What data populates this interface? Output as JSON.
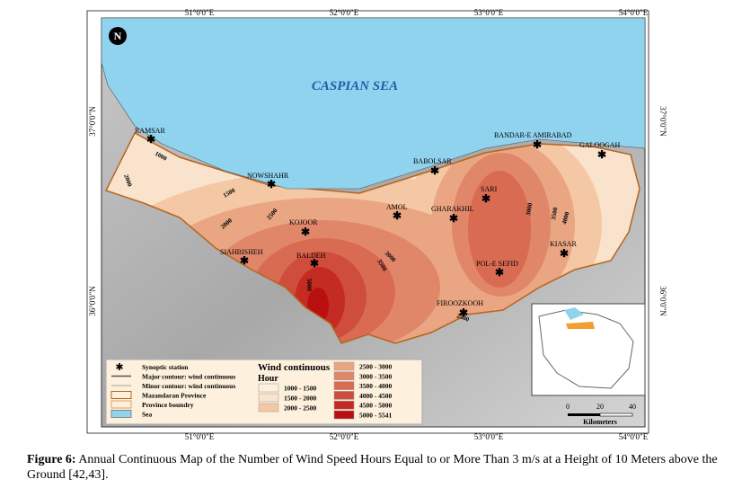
{
  "map": {
    "sea_label": "CASPIAN SEA",
    "longitudes": [
      "51°0'0\"E",
      "52°0'0\"E",
      "53°0'0\"E",
      "54°0'0\"E"
    ],
    "latitudes": [
      "37°0'0\"N",
      "36°0'0\"N"
    ],
    "stations": [
      "RAMSAR",
      "NOWSHAHR",
      "KOJOOR",
      "BALDEH",
      "SIAHBISHEH",
      "AMOL",
      "BABOLSAR",
      "GHARAKHIL",
      "SARI",
      "BANDAR-E AMIRABAD",
      "GALOOGAH",
      "KIASAR",
      "POL-E SEFID",
      "FIROOZKOOH"
    ],
    "contour_labels": [
      "1000",
      "2000",
      "1500",
      "2000",
      "2500",
      "3000",
      "3500",
      "5000",
      "2500",
      "3000",
      "3500",
      "4000"
    ]
  },
  "legend": {
    "items": [
      "Synoptic station",
      "Major contour: wind continuous",
      "Minor contour: wind continuous",
      "Mazandaran Province",
      "Province boundry",
      "Sea"
    ],
    "wind_title": "Wind continuous",
    "wind_unit": "Hour",
    "classes": [
      "1000 - 1500",
      "1500 - 2000",
      "2000 - 2500",
      "2500 - 3000",
      "3000 - 3500",
      "3500 - 4000",
      "4000 - 4500",
      "4500 - 5000",
      "5000 - 5541"
    ]
  },
  "scale": {
    "ticks": [
      "0",
      "20",
      "40"
    ],
    "unit": "Kilometers"
  },
  "caption": {
    "label": "Figure 6:",
    "text": "Annual Continuous Map of the Number of Wind Speed Hours Equal to or More Than 3 m/s at a Height of 10 Meters above the Ground [42,43]."
  }
}
